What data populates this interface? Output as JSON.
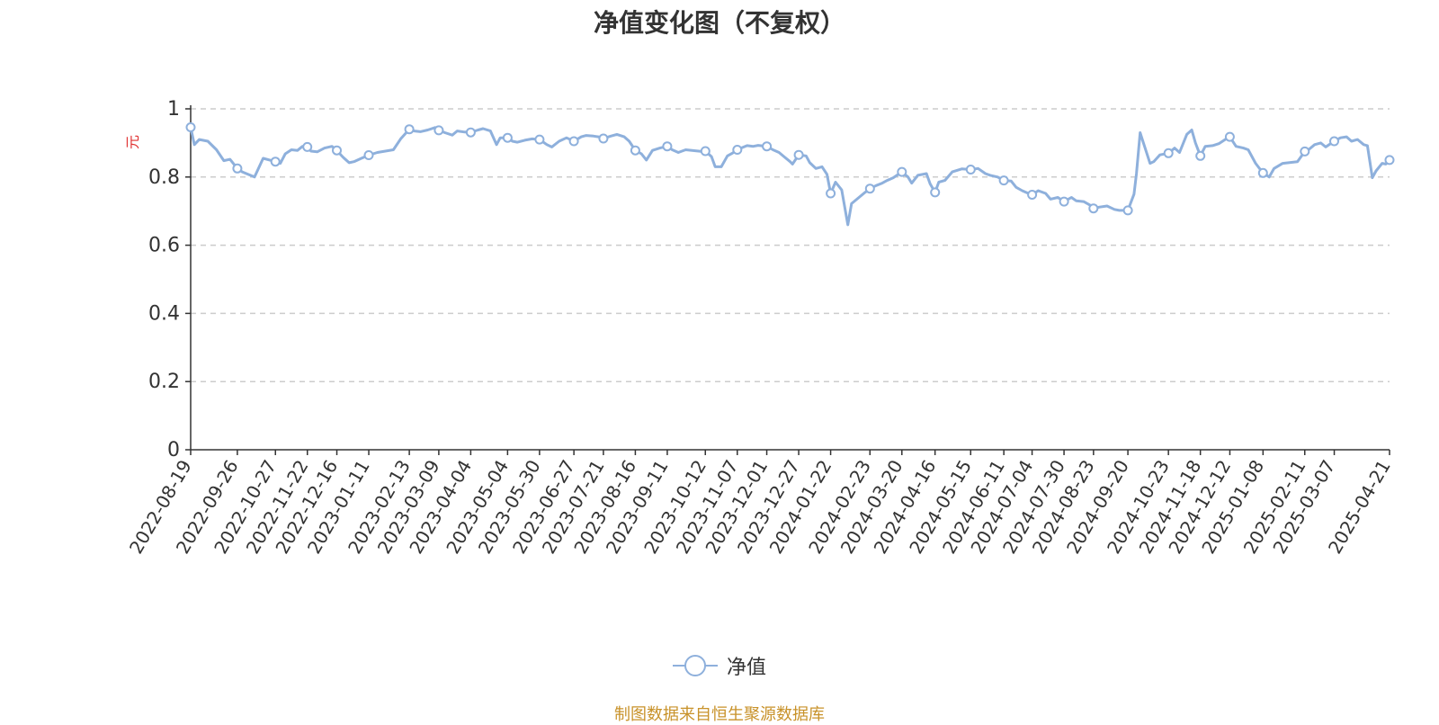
{
  "colors": {
    "line": "#8eb0dc",
    "unit": "#e03131",
    "source": "#c8922a",
    "axis": "#333333",
    "grid": "#cccccc"
  },
  "source_note": "制图数据来自恒生聚源数据库",
  "chart_data": {
    "type": "line",
    "title": "净值变化图（不复权）",
    "ylabel": "元",
    "ylim": [
      0,
      1
    ],
    "yticks": [
      "0",
      "0.2",
      "0.4",
      "0.6",
      "0.8",
      "1"
    ],
    "grid": true,
    "legend_position": "bottom-center",
    "xlabels": [
      "2022-08-19",
      "2022-09-26",
      "2022-10-27",
      "2022-11-22",
      "2022-12-16",
      "2023-01-11",
      "2023-02-13",
      "2023-03-09",
      "2023-04-04",
      "2023-05-04",
      "2023-05-30",
      "2023-06-27",
      "2023-07-21",
      "2023-08-16",
      "2023-09-11",
      "2023-10-12",
      "2023-11-07",
      "2023-12-01",
      "2023-12-27",
      "2024-01-22",
      "2024-02-23",
      "2024-03-20",
      "2024-04-16",
      "2024-05-15",
      "2024-06-11",
      "2024-07-04",
      "2024-07-30",
      "2024-08-23",
      "2024-09-20",
      "2024-10-23",
      "2024-11-18",
      "2024-12-12",
      "2025-01-08",
      "2025-02-11",
      "2025-03-07",
      "2025-04-21"
    ],
    "series": [
      {
        "name": "净值",
        "points": [
          [
            "2022-08-19",
            0.946
          ],
          [
            "2022-08-22",
            0.895
          ],
          [
            "2022-08-26",
            0.91
          ],
          [
            "2022-09-02",
            0.905
          ],
          [
            "2022-09-09",
            0.88
          ],
          [
            "2022-09-15",
            0.848
          ],
          [
            "2022-09-20",
            0.852
          ],
          [
            "2022-09-26",
            0.825
          ],
          [
            "2022-09-30",
            0.815
          ],
          [
            "2022-10-10",
            0.8
          ],
          [
            "2022-10-17",
            0.855
          ],
          [
            "2022-10-24",
            0.848
          ],
          [
            "2022-10-27",
            0.845
          ],
          [
            "2022-10-31",
            0.84
          ],
          [
            "2022-11-04",
            0.868
          ],
          [
            "2022-11-09",
            0.88
          ],
          [
            "2022-11-14",
            0.878
          ],
          [
            "2022-11-18",
            0.89
          ],
          [
            "2022-11-22",
            0.888
          ],
          [
            "2022-11-25",
            0.876
          ],
          [
            "2022-11-30",
            0.874
          ],
          [
            "2022-12-06",
            0.885
          ],
          [
            "2022-12-12",
            0.89
          ],
          [
            "2022-12-16",
            0.878
          ],
          [
            "2022-12-21",
            0.858
          ],
          [
            "2022-12-26",
            0.842
          ],
          [
            "2022-12-30",
            0.845
          ],
          [
            "2023-01-05",
            0.855
          ],
          [
            "2023-01-11",
            0.864
          ],
          [
            "2023-01-18",
            0.872
          ],
          [
            "2023-01-31",
            0.88
          ],
          [
            "2023-02-06",
            0.912
          ],
          [
            "2023-02-10",
            0.928
          ],
          [
            "2023-02-13",
            0.94
          ],
          [
            "2023-02-17",
            0.935
          ],
          [
            "2023-02-22",
            0.933
          ],
          [
            "2023-02-28",
            0.938
          ],
          [
            "2023-03-06",
            0.945
          ],
          [
            "2023-03-09",
            0.937
          ],
          [
            "2023-03-14",
            0.93
          ],
          [
            "2023-03-20",
            0.923
          ],
          [
            "2023-03-24",
            0.935
          ],
          [
            "2023-03-30",
            0.932
          ],
          [
            "2023-04-04",
            0.931
          ],
          [
            "2023-04-10",
            0.938
          ],
          [
            "2023-04-14",
            0.942
          ],
          [
            "2023-04-20",
            0.935
          ],
          [
            "2023-04-25",
            0.895
          ],
          [
            "2023-04-28",
            0.915
          ],
          [
            "2023-05-04",
            0.915
          ],
          [
            "2023-05-08",
            0.905
          ],
          [
            "2023-05-12",
            0.902
          ],
          [
            "2023-05-18",
            0.908
          ],
          [
            "2023-05-24",
            0.912
          ],
          [
            "2023-05-30",
            0.91
          ],
          [
            "2023-06-05",
            0.895
          ],
          [
            "2023-06-09",
            0.888
          ],
          [
            "2023-06-15",
            0.905
          ],
          [
            "2023-06-21",
            0.915
          ],
          [
            "2023-06-27",
            0.905
          ],
          [
            "2023-07-03",
            0.918
          ],
          [
            "2023-07-07",
            0.922
          ],
          [
            "2023-07-13",
            0.92
          ],
          [
            "2023-07-17",
            0.918
          ],
          [
            "2023-07-21",
            0.913
          ],
          [
            "2023-07-27",
            0.92
          ],
          [
            "2023-08-01",
            0.925
          ],
          [
            "2023-08-07",
            0.918
          ],
          [
            "2023-08-11",
            0.905
          ],
          [
            "2023-08-16",
            0.878
          ],
          [
            "2023-08-21",
            0.868
          ],
          [
            "2023-08-25",
            0.85
          ],
          [
            "2023-08-30",
            0.878
          ],
          [
            "2023-09-05",
            0.885
          ],
          [
            "2023-09-11",
            0.89
          ],
          [
            "2023-09-15",
            0.88
          ],
          [
            "2023-09-20",
            0.872
          ],
          [
            "2023-09-26",
            0.88
          ],
          [
            "2023-10-09",
            0.875
          ],
          [
            "2023-10-12",
            0.876
          ],
          [
            "2023-10-17",
            0.86
          ],
          [
            "2023-10-20",
            0.83
          ],
          [
            "2023-10-25",
            0.83
          ],
          [
            "2023-10-30",
            0.862
          ],
          [
            "2023-11-03",
            0.87
          ],
          [
            "2023-11-07",
            0.88
          ],
          [
            "2023-11-10",
            0.885
          ],
          [
            "2023-11-15",
            0.892
          ],
          [
            "2023-11-20",
            0.89
          ],
          [
            "2023-11-24",
            0.893
          ],
          [
            "2023-12-01",
            0.89
          ],
          [
            "2023-12-06",
            0.88
          ],
          [
            "2023-12-11",
            0.872
          ],
          [
            "2023-12-15",
            0.86
          ],
          [
            "2023-12-20",
            0.845
          ],
          [
            "2023-12-22",
            0.838
          ],
          [
            "2023-12-27",
            0.865
          ],
          [
            "2024-01-02",
            0.862
          ],
          [
            "2024-01-05",
            0.842
          ],
          [
            "2024-01-10",
            0.825
          ],
          [
            "2024-01-15",
            0.83
          ],
          [
            "2024-01-19",
            0.808
          ],
          [
            "2024-01-22",
            0.752
          ],
          [
            "2024-01-26",
            0.785
          ],
          [
            "2024-01-31",
            0.762
          ],
          [
            "2024-02-05",
            0.66
          ],
          [
            "2024-02-08",
            0.722
          ],
          [
            "2024-02-19",
            0.755
          ],
          [
            "2024-02-23",
            0.766
          ],
          [
            "2024-02-28",
            0.775
          ],
          [
            "2024-03-04",
            0.782
          ],
          [
            "2024-03-08",
            0.79
          ],
          [
            "2024-03-13",
            0.798
          ],
          [
            "2024-03-20",
            0.815
          ],
          [
            "2024-03-25",
            0.8
          ],
          [
            "2024-03-28",
            0.782
          ],
          [
            "2024-04-02",
            0.805
          ],
          [
            "2024-04-09",
            0.81
          ],
          [
            "2024-04-12",
            0.78
          ],
          [
            "2024-04-16",
            0.755
          ],
          [
            "2024-04-19",
            0.785
          ],
          [
            "2024-04-24",
            0.79
          ],
          [
            "2024-04-30",
            0.815
          ],
          [
            "2024-05-08",
            0.824
          ],
          [
            "2024-05-15",
            0.822
          ],
          [
            "2024-05-21",
            0.825
          ],
          [
            "2024-05-27",
            0.81
          ],
          [
            "2024-05-31",
            0.805
          ],
          [
            "2024-06-06",
            0.8
          ],
          [
            "2024-06-11",
            0.79
          ],
          [
            "2024-06-17",
            0.788
          ],
          [
            "2024-06-21",
            0.77
          ],
          [
            "2024-06-26",
            0.76
          ],
          [
            "2024-07-01",
            0.752
          ],
          [
            "2024-07-04",
            0.748
          ],
          [
            "2024-07-09",
            0.76
          ],
          [
            "2024-07-15",
            0.752
          ],
          [
            "2024-07-19",
            0.735
          ],
          [
            "2024-07-25",
            0.74
          ],
          [
            "2024-07-30",
            0.728
          ],
          [
            "2024-08-05",
            0.74
          ],
          [
            "2024-08-09",
            0.73
          ],
          [
            "2024-08-15",
            0.728
          ],
          [
            "2024-08-20",
            0.718
          ],
          [
            "2024-08-23",
            0.708
          ],
          [
            "2024-08-28",
            0.712
          ],
          [
            "2024-09-03",
            0.715
          ],
          [
            "2024-09-09",
            0.705
          ],
          [
            "2024-09-13",
            0.702
          ],
          [
            "2024-09-20",
            0.702
          ],
          [
            "2024-09-25",
            0.75
          ],
          [
            "2024-09-27",
            0.81
          ],
          [
            "2024-09-30",
            0.93
          ],
          [
            "2024-10-08",
            0.84
          ],
          [
            "2024-10-11",
            0.845
          ],
          [
            "2024-10-16",
            0.865
          ],
          [
            "2024-10-23",
            0.87
          ],
          [
            "2024-10-28",
            0.885
          ],
          [
            "2024-11-01",
            0.872
          ],
          [
            "2024-11-07",
            0.925
          ],
          [
            "2024-11-11",
            0.938
          ],
          [
            "2024-11-14",
            0.9
          ],
          [
            "2024-11-18",
            0.862
          ],
          [
            "2024-11-22",
            0.89
          ],
          [
            "2024-11-28",
            0.892
          ],
          [
            "2024-12-03",
            0.898
          ],
          [
            "2024-12-09",
            0.912
          ],
          [
            "2024-12-12",
            0.918
          ],
          [
            "2024-12-17",
            0.89
          ],
          [
            "2024-12-23",
            0.885
          ],
          [
            "2024-12-27",
            0.88
          ],
          [
            "2025-01-02",
            0.84
          ],
          [
            "2025-01-08",
            0.812
          ],
          [
            "2025-01-13",
            0.8
          ],
          [
            "2025-01-17",
            0.825
          ],
          [
            "2025-01-24",
            0.84
          ],
          [
            "2025-02-05",
            0.845
          ],
          [
            "2025-02-11",
            0.875
          ],
          [
            "2025-02-14",
            0.88
          ],
          [
            "2025-02-19",
            0.895
          ],
          [
            "2025-02-24",
            0.9
          ],
          [
            "2025-02-28",
            0.888
          ],
          [
            "2025-03-07",
            0.905
          ],
          [
            "2025-03-12",
            0.915
          ],
          [
            "2025-03-17",
            0.918
          ],
          [
            "2025-03-21",
            0.905
          ],
          [
            "2025-03-26",
            0.91
          ],
          [
            "2025-03-31",
            0.895
          ],
          [
            "2025-04-03",
            0.892
          ],
          [
            "2025-04-07",
            0.798
          ],
          [
            "2025-04-10",
            0.818
          ],
          [
            "2025-04-15",
            0.84
          ],
          [
            "2025-04-18",
            0.838
          ],
          [
            "2025-04-21",
            0.85
          ]
        ]
      }
    ]
  }
}
